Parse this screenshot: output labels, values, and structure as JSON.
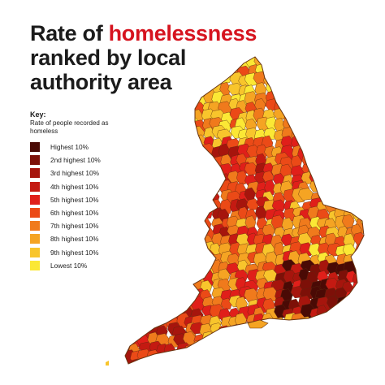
{
  "title": {
    "part1": "Rate of ",
    "highlight": "homelessness",
    "line2": "ranked by local",
    "line3": "authority area"
  },
  "key": {
    "heading": "Key:",
    "subtitle": "Rate of people recorded as homeless",
    "items": [
      {
        "label": "Highest 10%",
        "color": "#4a0a05"
      },
      {
        "label": "2nd highest 10%",
        "color": "#7d1008"
      },
      {
        "label": "3rd highest 10%",
        "color": "#a6150d"
      },
      {
        "label": "4th highest 10%",
        "color": "#c41a12"
      },
      {
        "label": "5th highest 10%",
        "color": "#e01f1a"
      },
      {
        "label": "6th highest 10%",
        "color": "#eb4a17"
      },
      {
        "label": "7th highest 10%",
        "color": "#f07a1c"
      },
      {
        "label": "8th highest 10%",
        "color": "#f5a423"
      },
      {
        "label": "9th highest 10%",
        "color": "#f8c52c"
      },
      {
        "label": "Lowest 10%",
        "color": "#fbe835"
      }
    ]
  },
  "map": {
    "region": "England",
    "border_color": "#5a2a10"
  }
}
